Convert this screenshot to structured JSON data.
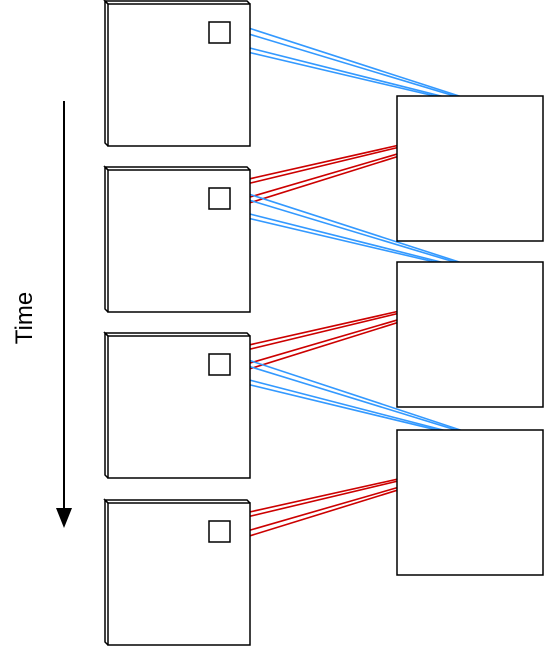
{
  "time_axis": {
    "label": "Time"
  },
  "colors": {
    "current_frame_link": "#3399FF",
    "previous_frame_link": "#CC0000",
    "stroke": "#000000",
    "background": "#FFFFFF"
  },
  "counts": {
    "input_frames": 4,
    "output_units": 3
  }
}
